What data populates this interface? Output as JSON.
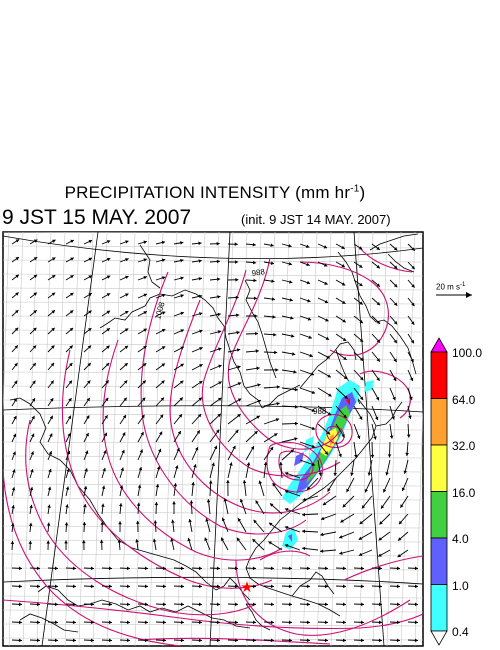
{
  "title": {
    "main": "PRECIPITATION INTENSITY (mm hr",
    "sup": "-1",
    "close": ")",
    "valid_time": "9 JST 15 MAY. 2007",
    "init_time": "(init. 9 JST 14 MAY. 2007)"
  },
  "reference_vector": {
    "label": "20 m s",
    "sup": "-1"
  },
  "colorbar": {
    "levels": [
      "100.0",
      "64.0",
      "32.0",
      "16.0",
      "4.0",
      "1.0",
      "0.4"
    ],
    "colors": [
      "#ff00ff",
      "#ff0000",
      "#ffa030",
      "#ffff40",
      "#40d040",
      "#6060ff",
      "#40ffff",
      "#ffffff"
    ]
  },
  "contour_labels": [
    "988",
    "1008",
    "988"
  ],
  "map": {
    "isobar_color": "#cc1075",
    "coast_color": "#000000",
    "marker": {
      "symbol": "★",
      "color": "#ff0000"
    }
  }
}
